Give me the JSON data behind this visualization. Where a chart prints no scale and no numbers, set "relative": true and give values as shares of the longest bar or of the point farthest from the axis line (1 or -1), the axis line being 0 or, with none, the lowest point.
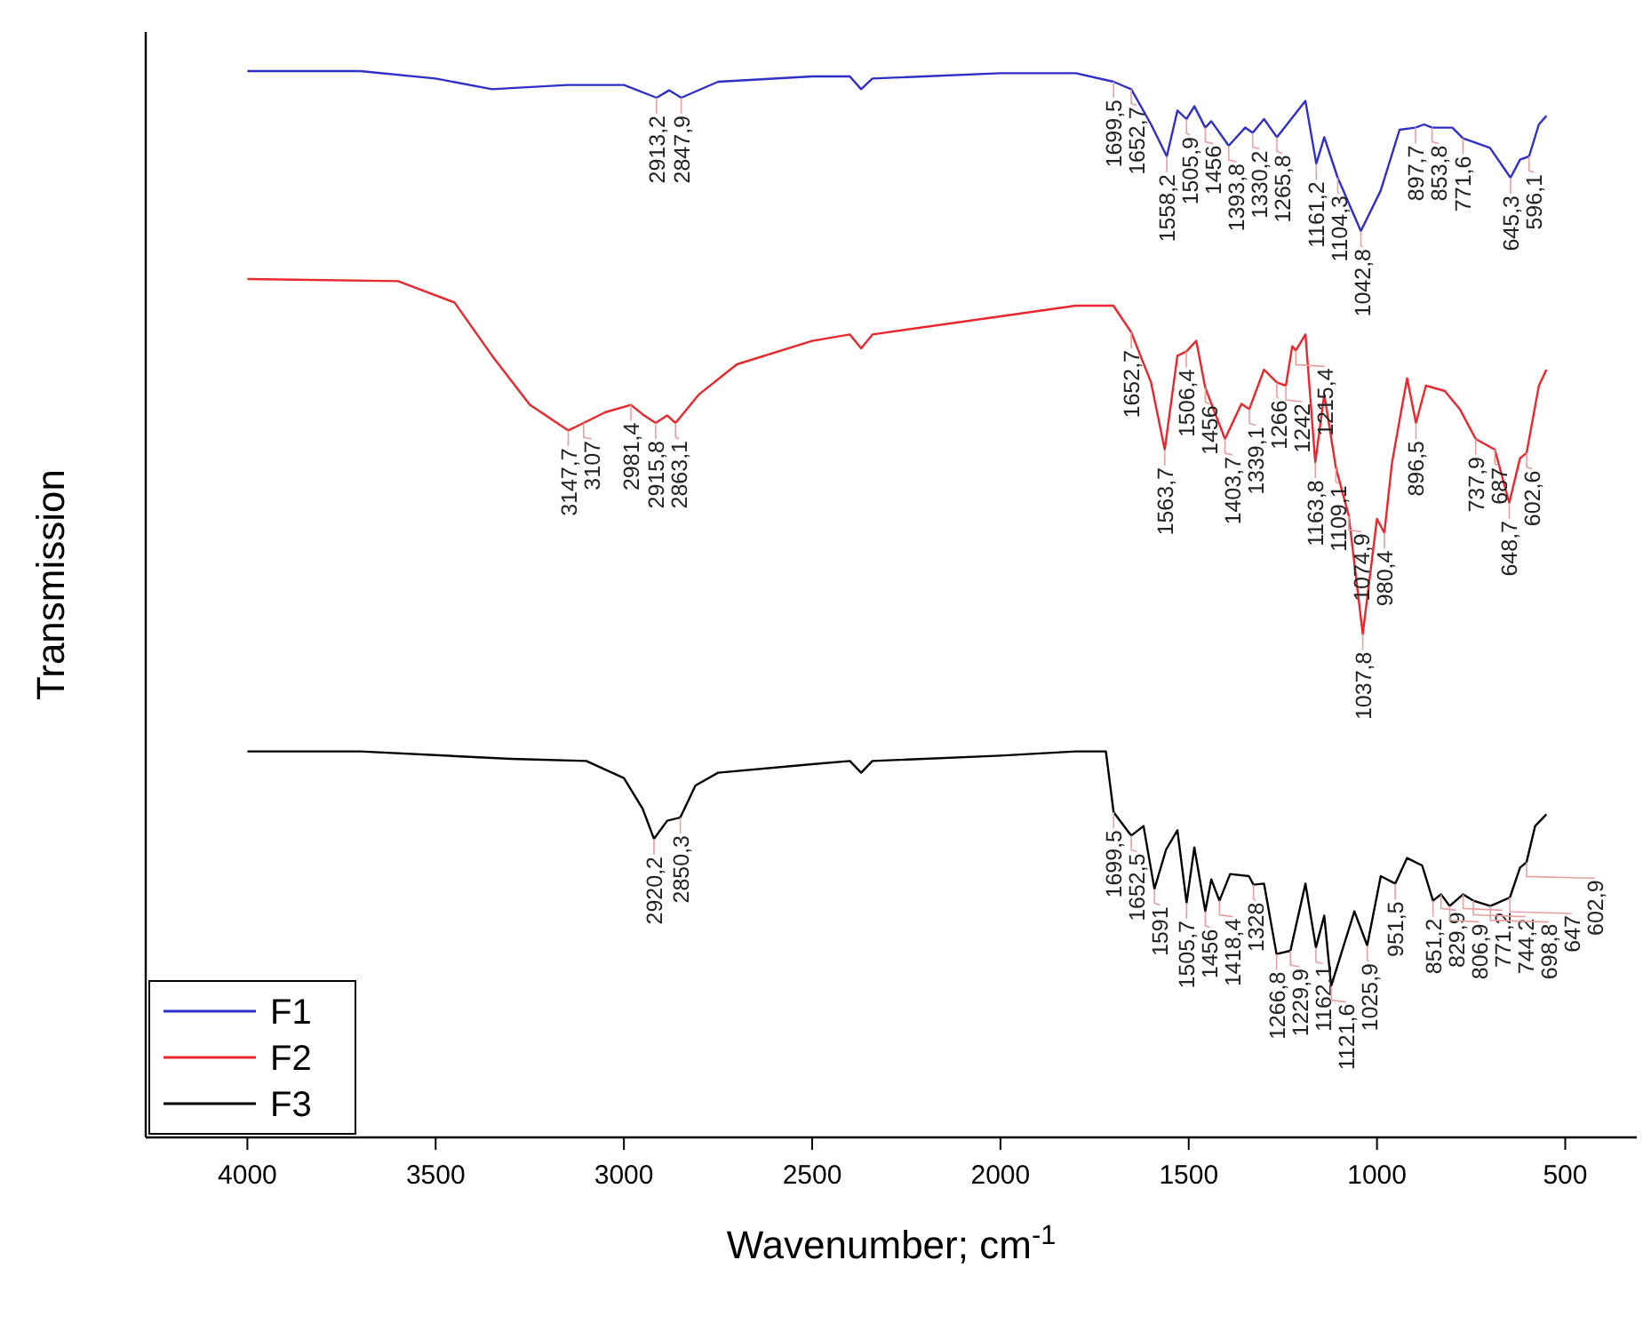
{
  "chart_data": {
    "type": "line",
    "relative": true,
    "xlabel": "Wavenumber; cm$^{-1}$",
    "ylabel": "Transmission",
    "xlim": [
      4270,
      310
    ],
    "xticks": [
      4000,
      3500,
      3000,
      2500,
      2000,
      1500,
      1000,
      500
    ],
    "legend": "bottom left",
    "grid": false,
    "series": [
      {
        "name": "F1",
        "color": "#2e2ec8",
        "x": [
          4000,
          3700,
          3500,
          3350,
          3150,
          3000,
          2913.2,
          2880,
          2847.9,
          2750,
          2500,
          2400,
          2370,
          2340,
          2000,
          1800,
          1699.5,
          1652.7,
          1600,
          1558.2,
          1530,
          1505.9,
          1485,
          1456,
          1440,
          1393.8,
          1350,
          1330.2,
          1300,
          1265.8,
          1190,
          1161.2,
          1140,
          1104.3,
          1042.8,
          990,
          940,
          897.7,
          875,
          853.8,
          800,
          771.6,
          700,
          645.3,
          620,
          596.1,
          570,
          550
        ],
        "values": [
          1,
          1,
          0.993,
          0.983,
          0.987,
          0.987,
          0.975,
          0.982,
          0.975,
          0.99,
          0.995,
          0.995,
          0.983,
          0.993,
          0.998,
          0.998,
          0.99,
          0.983,
          0.95,
          0.92,
          0.963,
          0.955,
          0.967,
          0.947,
          0.953,
          0.93,
          0.947,
          0.942,
          0.955,
          0.938,
          0.972,
          0.913,
          0.938,
          0.9,
          0.85,
          0.888,
          0.945,
          0.947,
          0.95,
          0.947,
          0.947,
          0.937,
          0.928,
          0.9,
          0.917,
          0.92,
          0.95,
          0.958
        ]
      },
      {
        "name": "F2",
        "color": "#e8262b",
        "x": [
          4000,
          3600,
          3450,
          3350,
          3250,
          3147.7,
          3107,
          3050,
          2981.4,
          2950,
          2915.8,
          2885,
          2863.1,
          2800,
          2700,
          2500,
          2400,
          2370,
          2340,
          2000,
          1800,
          1700,
          1652.7,
          1600,
          1563.7,
          1530,
          1506.4,
          1480,
          1456,
          1403.7,
          1360,
          1339.1,
          1300,
          1266,
          1242,
          1225,
          1215.4,
          1190,
          1163.8,
          1140,
          1109.1,
          1074.9,
          1037.8,
          1000,
          980.4,
          960,
          920,
          896.5,
          870,
          820,
          780,
          737.9,
          687,
          648.7,
          620,
          602.6,
          570,
          550
        ],
        "values": [
          0.805,
          0.803,
          0.783,
          0.733,
          0.687,
          0.663,
          0.67,
          0.68,
          0.687,
          0.678,
          0.67,
          0.677,
          0.67,
          0.697,
          0.725,
          0.747,
          0.753,
          0.74,
          0.753,
          0.77,
          0.78,
          0.78,
          0.755,
          0.708,
          0.645,
          0.733,
          0.737,
          0.747,
          0.703,
          0.655,
          0.688,
          0.683,
          0.72,
          0.708,
          0.705,
          0.742,
          0.738,
          0.753,
          0.633,
          0.697,
          0.628,
          0.583,
          0.472,
          0.58,
          0.567,
          0.633,
          0.712,
          0.67,
          0.705,
          0.7,
          0.683,
          0.655,
          0.645,
          0.595,
          0.637,
          0.642,
          0.705,
          0.72
        ]
      },
      {
        "name": "F3",
        "color": "#000000",
        "x": [
          4000,
          3700,
          3300,
          3100,
          3000,
          2950,
          2920.2,
          2885,
          2850.3,
          2810,
          2750,
          2500,
          2400,
          2370,
          2340,
          2000,
          1800,
          1720,
          1699.5,
          1652.5,
          1620,
          1591,
          1560,
          1530,
          1505.7,
          1485,
          1456,
          1440,
          1418.4,
          1390,
          1340,
          1328,
          1300,
          1266.8,
          1229.9,
          1190,
          1162.1,
          1140,
          1121.6,
          1090,
          1060,
          1025.9,
          990,
          951.5,
          920,
          880,
          851.2,
          829.9,
          806.9,
          771.2,
          744.2,
          698.8,
          647,
          620,
          602.9,
          580,
          550
        ],
        "values": [
          0.362,
          0.362,
          0.355,
          0.353,
          0.337,
          0.308,
          0.28,
          0.297,
          0.3,
          0.33,
          0.342,
          0.35,
          0.353,
          0.342,
          0.353,
          0.358,
          0.362,
          0.362,
          0.305,
          0.283,
          0.292,
          0.233,
          0.27,
          0.288,
          0.22,
          0.272,
          0.212,
          0.242,
          0.222,
          0.247,
          0.245,
          0.237,
          0.238,
          0.172,
          0.175,
          0.238,
          0.178,
          0.208,
          0.142,
          0.178,
          0.212,
          0.18,
          0.245,
          0.238,
          0.262,
          0.255,
          0.222,
          0.228,
          0.217,
          0.228,
          0.222,
          0.217,
          0.225,
          0.253,
          0.258,
          0.292,
          0.303
        ]
      }
    ],
    "annotations": [
      {
        "text": "2913,2",
        "x": 2913.2,
        "y": 0.975
      },
      {
        "text": "2847,9",
        "x": 2847.9,
        "y": 0.975
      },
      {
        "text": "1699,5",
        "x": 1699.5,
        "y": 0.99
      },
      {
        "text": "1652,7",
        "x": 1652.7,
        "y": 0.983
      },
      {
        "text": "1558,2",
        "x": 1558.2,
        "y": 0.92
      },
      {
        "text": "1505,9",
        "x": 1505.9,
        "y": 0.955
      },
      {
        "text": "1456",
        "x": 1456,
        "y": 0.947
      },
      {
        "text": "1393,8",
        "x": 1393.8,
        "y": 0.93
      },
      {
        "text": "1330,2",
        "x": 1330.2,
        "y": 0.942
      },
      {
        "text": "1265,8",
        "x": 1265.8,
        "y": 0.938
      },
      {
        "text": "1161,2",
        "x": 1161.2,
        "y": 0.913
      },
      {
        "text": "1104,3",
        "x": 1104.3,
        "y": 0.9
      },
      {
        "text": "1042,8",
        "x": 1042.8,
        "y": 0.85
      },
      {
        "text": "897,7",
        "x": 897.7,
        "y": 0.947
      },
      {
        "text": "853,8",
        "x": 853.8,
        "y": 0.947
      },
      {
        "text": "771,6",
        "x": 771.6,
        "y": 0.937
      },
      {
        "text": "645,3",
        "x": 645.3,
        "y": 0.9
      },
      {
        "text": "596,1",
        "x": 596.1,
        "y": 0.92
      },
      {
        "text": "3147,7",
        "x": 3147.7,
        "y": 0.663
      },
      {
        "text": "3107",
        "x": 3107,
        "y": 0.67
      },
      {
        "text": "2981,4",
        "x": 2981.4,
        "y": 0.687
      },
      {
        "text": "2915,8",
        "x": 2915.8,
        "y": 0.67
      },
      {
        "text": "2863,1",
        "x": 2863.1,
        "y": 0.67
      },
      {
        "text": "1652,7",
        "x": 1652.7,
        "y": 0.755
      },
      {
        "text": "1563,7",
        "x": 1563.7,
        "y": 0.645
      },
      {
        "text": "1506,4",
        "x": 1506.4,
        "y": 0.737
      },
      {
        "text": "1456",
        "x": 1456,
        "y": 0.703
      },
      {
        "text": "1403,7",
        "x": 1403.7,
        "y": 0.655
      },
      {
        "text": "1339,1",
        "x": 1339.1,
        "y": 0.683
      },
      {
        "text": "1266",
        "x": 1266,
        "y": 0.708
      },
      {
        "text": "1242",
        "x": 1242,
        "y": 0.705
      },
      {
        "text": "1215,4",
        "x": 1215.4,
        "y": 0.738
      },
      {
        "text": "1163,8",
        "x": 1163.8,
        "y": 0.633
      },
      {
        "text": "1109,1",
        "x": 1109.1,
        "y": 0.628
      },
      {
        "text": "1074,9",
        "x": 1074.9,
        "y": 0.583
      },
      {
        "text": "1037,8",
        "x": 1037.8,
        "y": 0.472
      },
      {
        "text": "980,4",
        "x": 980.4,
        "y": 0.567
      },
      {
        "text": "896,5",
        "x": 896.5,
        "y": 0.67
      },
      {
        "text": "737,9",
        "x": 737.9,
        "y": 0.655
      },
      {
        "text": "687",
        "x": 687,
        "y": 0.645
      },
      {
        "text": "648,7",
        "x": 648.7,
        "y": 0.595
      },
      {
        "text": "602,6",
        "x": 602.6,
        "y": 0.642
      },
      {
        "text": "2920,2",
        "x": 2920.2,
        "y": 0.28
      },
      {
        "text": "2850,3",
        "x": 2850.3,
        "y": 0.3
      },
      {
        "text": "1699,5",
        "x": 1699.5,
        "y": 0.305
      },
      {
        "text": "1652,5",
        "x": 1652.5,
        "y": 0.283
      },
      {
        "text": "1591",
        "x": 1591,
        "y": 0.233
      },
      {
        "text": "1505,7",
        "x": 1505.7,
        "y": 0.22
      },
      {
        "text": "1456",
        "x": 1456,
        "y": 0.212
      },
      {
        "text": "1418,4",
        "x": 1418.4,
        "y": 0.222
      },
      {
        "text": "1328",
        "x": 1328,
        "y": 0.237
      },
      {
        "text": "1266,8",
        "x": 1266.8,
        "y": 0.172
      },
      {
        "text": "1229,9",
        "x": 1229.9,
        "y": 0.175
      },
      {
        "text": "1162,1",
        "x": 1162.1,
        "y": 0.178
      },
      {
        "text": "1121,6",
        "x": 1121.6,
        "y": 0.142
      },
      {
        "text": "1025,9",
        "x": 1025.9,
        "y": 0.18
      },
      {
        "text": "951,5",
        "x": 951.5,
        "y": 0.238
      },
      {
        "text": "851,2",
        "x": 851.2,
        "y": 0.222
      },
      {
        "text": "829,9",
        "x": 829.9,
        "y": 0.228
      },
      {
        "text": "806,9",
        "x": 806.9,
        "y": 0.217
      },
      {
        "text": "771,2",
        "x": 771.2,
        "y": 0.228
      },
      {
        "text": "744,2",
        "x": 744.2,
        "y": 0.222
      },
      {
        "text": "698,8",
        "x": 698.8,
        "y": 0.217
      },
      {
        "text": "647",
        "x": 647,
        "y": 0.225
      },
      {
        "text": "602,9",
        "x": 602.9,
        "y": 0.258
      }
    ]
  }
}
